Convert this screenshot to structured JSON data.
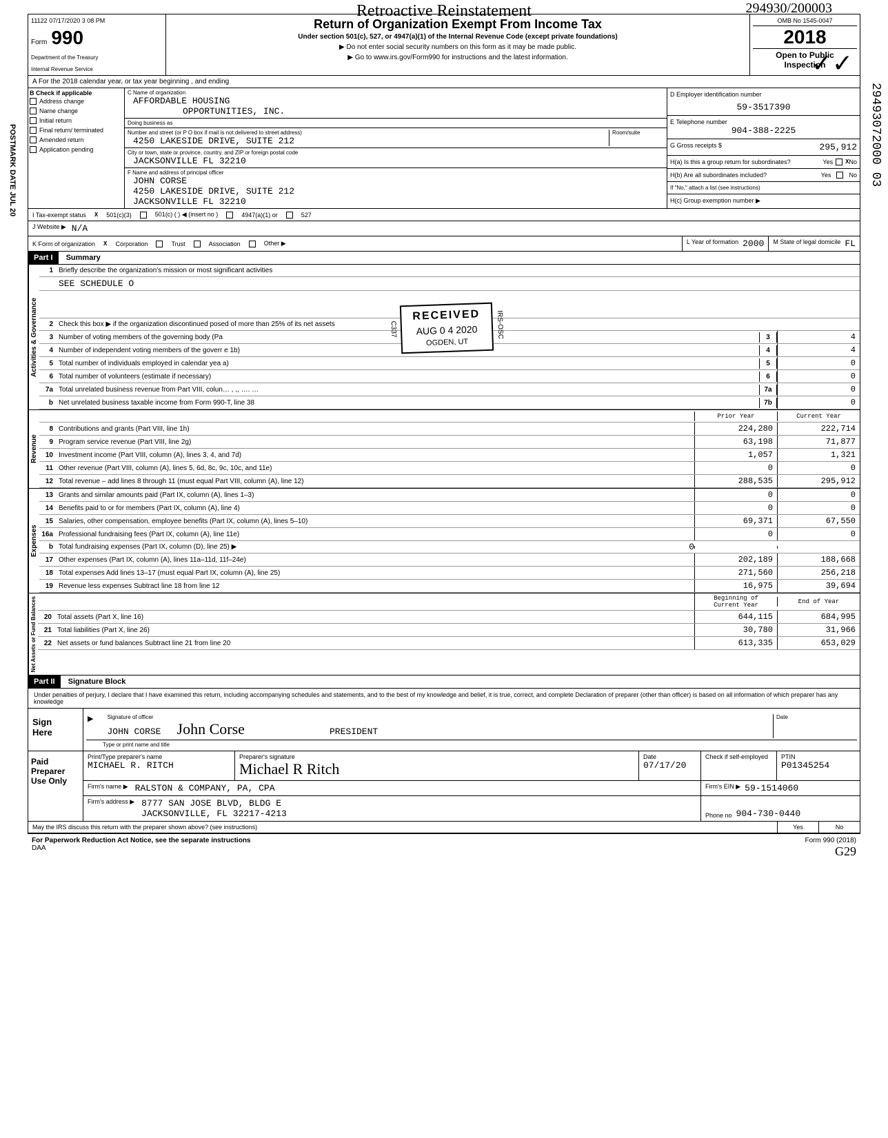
{
  "timestamp": "11122 07/17/2020 3 08 PM",
  "handwritten_title": "Retroactive Reinstatement",
  "stamp_number": "294930/200003",
  "form": {
    "label": "Form",
    "number": "990",
    "dept1": "Department of the Treasury",
    "dept2": "Internal Revenue Service"
  },
  "header": {
    "title": "Return of Organization Exempt From Income Tax",
    "subtitle": "Under section 501(c), 527, or 4947(a)(1) of the Internal Revenue Code (except private foundations)",
    "note1": "▶ Do not enter social security numbers on this form as it may be made public.",
    "note2": "▶ Go to www.irs.gov/Form990 for instructions and the latest information.",
    "omb": "OMB No 1545-0047",
    "year": "2018",
    "open1": "Open to Public",
    "open2": "Inspection"
  },
  "row_a": "A   For the 2018 calendar year, or tax year beginning                    , and ending",
  "section_b": {
    "title": "B  Check if applicable",
    "checks": [
      "Address change",
      "Name change",
      "Initial return",
      "Final return/ terminated",
      "Amended return",
      "Application pending"
    ],
    "c_label": "C  Name of organization",
    "org_name1": "AFFORDABLE HOUSING",
    "org_name2": "OPPORTUNITIES, INC.",
    "dba_label": "Doing business as",
    "addr_label": "Number and street (or P O box if mail is not delivered to street address)",
    "room_label": "Room/suite",
    "address": "4250 LAKESIDE DRIVE, SUITE 212",
    "city_label": "City or town, state or province, country, and ZIP or foreign postal code",
    "city": "JACKSONVILLE          FL 32210",
    "f_label": "F  Name and address of principal officer",
    "officer_name": "JOHN CORSE",
    "officer_addr": "4250 LAKESIDE DRIVE, SUITE 212",
    "officer_city": "JACKSONVILLE          FL 32210",
    "d_label": "D  Employer identification number",
    "ein": "59-3517390",
    "e_label": "E  Telephone number",
    "phone": "904-388-2225",
    "g_label": "G  Gross receipts $",
    "gross": "295,912",
    "h_a": "H(a) Is this a group return for subordinates?",
    "h_b": "H(b) Are all subordinates included?",
    "h_note": "If \"No,\" attach a list (see instructions)",
    "h_c": "H(c) Group exemption number ▶",
    "yes": "Yes",
    "no": "No",
    "x": "X"
  },
  "tax_status": {
    "i_label": "I    Tax-exempt status",
    "x": "X",
    "opt1": "501(c)(3)",
    "opt2": "501(c) (        ) ◀ (insert no )",
    "opt3": "4947(a)(1) or",
    "opt4": "527",
    "j_label": "J   Website ▶",
    "website": "N/A",
    "k_label": "K   Form of organization",
    "corp": "Corporation",
    "trust": "Trust",
    "assoc": "Association",
    "other": "Other ▶",
    "l_label": "L   Year of formation",
    "year": "2000",
    "m_label": "M   State of legal domicile",
    "state": "FL"
  },
  "part1": {
    "label": "Part I",
    "title": "Summary"
  },
  "governance": {
    "label": "Activities & Governance",
    "l1": "Briefly describe the organization's mission or most significant activities",
    "l1_val": "SEE SCHEDULE O",
    "l2": "Check this box ▶        if the organization discontinued           posed of more than 25% of its net assets",
    "l3": "Number of voting members of the governing body (Pa",
    "l4": "Number of independent voting members of the goverr                    e 1b)",
    "l5": "Total number of individuals employed in calendar yea                    a)",
    "l6": "Total number of volunteers (estimate if necessary)",
    "l7a": "Total unrelated business revenue from Part VIII, colun… ,  ,,  …. …",
    "l7b": "Net unrelated business taxable income from Form 990-T, line 38",
    "v3": "4",
    "v4": "4",
    "v5": "0",
    "v6": "0",
    "v7a": "0",
    "v7b": "0"
  },
  "received": {
    "title": "RECEIVED",
    "date": "AUG 0 4 2020",
    "loc": "OGDEN, UT",
    "side": "IRS-OSC",
    "code": "C337"
  },
  "revenue": {
    "label": "Revenue",
    "col1": "Prior Year",
    "col2": "Current Year",
    "rows": [
      {
        "n": "8",
        "t": "Contributions and grants (Part VIII, line 1h)",
        "p": "224,280",
        "c": "222,714"
      },
      {
        "n": "9",
        "t": "Program service revenue (Part VIII, line 2g)",
        "p": "63,198",
        "c": "71,877"
      },
      {
        "n": "10",
        "t": "Investment income (Part VIII, column (A), lines 3, 4, and 7d)",
        "p": "1,057",
        "c": "1,321"
      },
      {
        "n": "11",
        "t": "Other revenue (Part VIII, column (A), lines 5, 6d, 8c, 9c, 10c, and 11e)",
        "p": "0",
        "c": "0"
      },
      {
        "n": "12",
        "t": "Total revenue – add lines 8 through 11 (must equal Part VIII, column (A), line 12)",
        "p": "288,535",
        "c": "295,912"
      }
    ]
  },
  "expenses": {
    "label": "Expenses",
    "rows": [
      {
        "n": "13",
        "t": "Grants and similar amounts paid (Part IX, column (A), lines 1–3)",
        "p": "0",
        "c": "0"
      },
      {
        "n": "14",
        "t": "Benefits paid to or for members (Part IX, column (A), line 4)",
        "p": "0",
        "c": "0"
      },
      {
        "n": "15",
        "t": "Salaries, other compensation, employee benefits (Part IX, column (A), lines 5–10)",
        "p": "69,371",
        "c": "67,550"
      },
      {
        "n": "16a",
        "t": "Professional fundraising fees (Part IX, column (A), line 11e)",
        "p": "0",
        "c": "0"
      },
      {
        "n": "b",
        "t": "Total fundraising expenses (Part IX, column (D), line 25) ▶",
        "mid": "0",
        "p": "",
        "c": ""
      },
      {
        "n": "17",
        "t": "Other expenses (Part IX, column (A), lines 11a–11d, 11f–24e)",
        "p": "202,189",
        "c": "188,668"
      },
      {
        "n": "18",
        "t": "Total expenses  Add lines 13–17 (must equal Part IX, column (A), line 25)",
        "p": "271,560",
        "c": "256,218"
      },
      {
        "n": "19",
        "t": "Revenue less expenses  Subtract line 18 from line 12",
        "p": "16,975",
        "c": "39,694"
      }
    ]
  },
  "netassets": {
    "label": "Net Assets or Fund Balances",
    "col1": "Beginning of Current Year",
    "col2": "End of Year",
    "rows": [
      {
        "n": "20",
        "t": "Total assets (Part X, line 16)",
        "p": "644,115",
        "c": "684,995"
      },
      {
        "n": "21",
        "t": "Total liabilities (Part X, line 26)",
        "p": "30,780",
        "c": "31,966"
      },
      {
        "n": "22",
        "t": "Net assets or fund balances  Subtract line 21 from line 20",
        "p": "613,335",
        "c": "653,029"
      }
    ]
  },
  "part2": {
    "label": "Part II",
    "title": "Signature Block",
    "perjury": "Under penalties of perjury, I declare that I have examined this return, including accompanying schedules and statements, and to the best of my knowledge and belief, it is true, correct, and complete  Declaration of preparer (other than officer) is based on all information of which preparer has any knowledge"
  },
  "sign": {
    "label1": "Sign",
    "label2": "Here",
    "sig_label": "Signature of officer",
    "name": "JOHN CORSE",
    "signature": "John Corse",
    "title": "PRESIDENT",
    "type_label": "Type or print name and title",
    "date_label": "Date"
  },
  "paid": {
    "label1": "Paid",
    "label2": "Preparer",
    "label3": "Use Only",
    "h1": "Print/Type preparer's name",
    "h2": "Preparer's signature",
    "h3": "Date",
    "h4": "Check         if self-employed",
    "h5": "PTIN",
    "name": "MICHAEL R. RITCH",
    "signature": "Michael R Ritch",
    "date": "07/17/20",
    "ptin": "P01345254",
    "firm_label": "Firm's name    ▶",
    "firm": "RALSTON & COMPANY, PA, CPA",
    "ein_label": "Firm's EIN ▶",
    "ein": "59-1514060",
    "addr_label": "Firm's address   ▶",
    "addr1": "8777 SAN JOSE BLVD, BLDG E",
    "addr2": "JACKSONVILLE, FL  32217-4213",
    "phone_label": "Phone no",
    "phone": "904-730-0440"
  },
  "footer": {
    "discuss": "May the IRS discuss this return with the preparer shown above? (see instructions)",
    "yes": "Yes",
    "no": "No",
    "pra": "For Paperwork Reduction Act Notice, see the separate instructions",
    "daa": "DAA",
    "form": "Form 990 (2018)",
    "initial": "G29"
  },
  "postmark": "POSTMARK DATE JUL 20",
  "side_number": "29493072000 03"
}
